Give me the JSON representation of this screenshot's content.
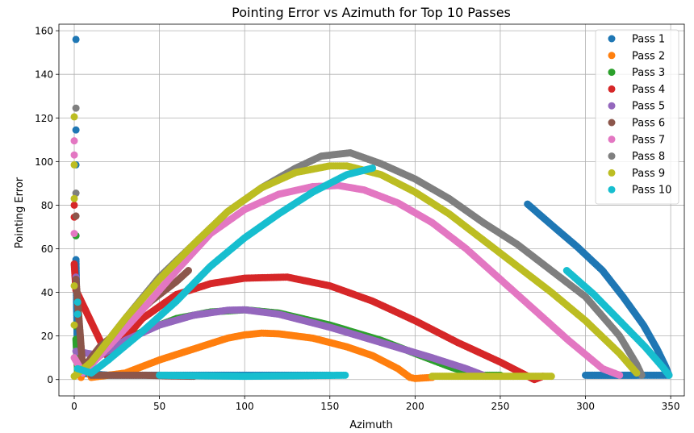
{
  "chart_data": {
    "type": "scatter",
    "title": "Pointing Error vs Azimuth for Top 10 Passes",
    "xlabel": "Azimuth",
    "ylabel": "Pointing Error",
    "xlim": [
      -9,
      358
    ],
    "ylim": [
      -7.5,
      163
    ],
    "xticks": [
      0,
      50,
      100,
      150,
      200,
      250,
      300,
      350
    ],
    "yticks": [
      0,
      20,
      40,
      60,
      80,
      100,
      120,
      140,
      160
    ],
    "grid": true,
    "legend_position": "top-right",
    "series": [
      {
        "name": "Pass 1",
        "color": "#1f77b4",
        "points": [
          [
            1,
            156
          ],
          [
            1,
            114.5
          ],
          [
            1,
            98.5
          ],
          [
            1,
            66
          ],
          [
            1,
            55
          ],
          [
            2,
            3
          ],
          [
            20,
            2
          ],
          [
            60,
            2
          ],
          [
            100,
            2
          ],
          [
            150,
            2
          ],
          [
            266,
            80.5
          ],
          [
            280,
            71
          ],
          [
            295,
            61
          ],
          [
            310,
            50
          ],
          [
            322,
            38
          ],
          [
            334,
            25
          ],
          [
            342,
            14
          ],
          [
            347,
            6
          ],
          [
            349,
            2
          ],
          [
            300,
            2
          ],
          [
            330,
            2
          ]
        ]
      },
      {
        "name": "Pass 2",
        "color": "#ff7f0e",
        "points": [
          [
            4,
            1
          ],
          [
            6,
            8
          ],
          [
            10,
            1
          ],
          [
            30,
            3
          ],
          [
            50,
            9
          ],
          [
            70,
            14
          ],
          [
            90,
            19
          ],
          [
            100,
            20.5
          ],
          [
            110,
            21.3
          ],
          [
            120,
            21
          ],
          [
            140,
            19
          ],
          [
            160,
            15
          ],
          [
            175,
            11
          ],
          [
            190,
            5
          ],
          [
            197,
            1
          ],
          [
            200,
            0.5
          ],
          [
            210,
            1
          ]
        ]
      },
      {
        "name": "Pass 3",
        "color": "#2ca02c",
        "points": [
          [
            1,
            66
          ],
          [
            1,
            24.5
          ],
          [
            1,
            18.5
          ],
          [
            2,
            3
          ],
          [
            20,
            14
          ],
          [
            40,
            22
          ],
          [
            60,
            28
          ],
          [
            80,
            31
          ],
          [
            100,
            32
          ],
          [
            120,
            30.5
          ],
          [
            150,
            25
          ],
          [
            180,
            18
          ],
          [
            200,
            12
          ],
          [
            220,
            6
          ],
          [
            235,
            2
          ],
          [
            250,
            2
          ]
        ]
      },
      {
        "name": "Pass 4",
        "color": "#d62728",
        "points": [
          [
            0,
            80
          ],
          [
            0,
            74.5
          ],
          [
            0,
            53
          ],
          [
            1,
            41
          ],
          [
            20,
            10
          ],
          [
            40,
            28
          ],
          [
            60,
            39
          ],
          [
            80,
            44
          ],
          [
            100,
            46.5
          ],
          [
            125,
            47
          ],
          [
            150,
            43
          ],
          [
            175,
            36
          ],
          [
            200,
            27
          ],
          [
            225,
            17
          ],
          [
            250,
            8
          ],
          [
            265,
            2
          ],
          [
            270,
            0
          ],
          [
            275,
            1.5
          ]
        ]
      },
      {
        "name": "Pass 5",
        "color": "#9467bd",
        "points": [
          [
            1,
            47
          ],
          [
            1,
            13
          ],
          [
            15,
            11
          ],
          [
            30,
            18
          ],
          [
            50,
            25
          ],
          [
            70,
            29.5
          ],
          [
            90,
            31.8
          ],
          [
            100,
            32
          ],
          [
            120,
            30
          ],
          [
            150,
            24
          ],
          [
            180,
            17
          ],
          [
            210,
            10
          ],
          [
            230,
            5
          ],
          [
            240,
            2
          ]
        ]
      },
      {
        "name": "Pass 6",
        "color": "#8c564b",
        "points": [
          [
            1,
            75
          ],
          [
            1,
            46
          ],
          [
            5,
            5
          ],
          [
            15,
            15
          ],
          [
            30,
            25
          ],
          [
            45,
            36
          ],
          [
            60,
            45
          ],
          [
            67,
            50
          ],
          [
            10,
            2
          ],
          [
            40,
            2
          ],
          [
            70,
            1.5
          ]
        ]
      },
      {
        "name": "Pass 7",
        "color": "#e377c2",
        "points": [
          [
            0,
            109.5
          ],
          [
            0,
            103
          ],
          [
            0,
            67
          ],
          [
            0,
            10
          ],
          [
            5,
            3
          ],
          [
            20,
            15
          ],
          [
            40,
            32
          ],
          [
            60,
            50
          ],
          [
            80,
            67
          ],
          [
            100,
            78
          ],
          [
            120,
            85
          ],
          [
            140,
            88.5
          ],
          [
            155,
            89
          ],
          [
            170,
            87
          ],
          [
            190,
            81
          ],
          [
            210,
            72
          ],
          [
            230,
            60
          ],
          [
            250,
            46
          ],
          [
            270,
            32
          ],
          [
            290,
            18
          ],
          [
            310,
            5
          ],
          [
            320,
            2
          ]
        ]
      },
      {
        "name": "Pass 8",
        "color": "#7f7f7f",
        "points": [
          [
            1,
            124.5
          ],
          [
            1,
            85.5
          ],
          [
            10,
            8
          ],
          [
            30,
            28
          ],
          [
            50,
            47
          ],
          [
            70,
            62
          ],
          [
            90,
            77
          ],
          [
            110,
            88
          ],
          [
            130,
            97
          ],
          [
            145,
            102.5
          ],
          [
            162,
            104
          ],
          [
            180,
            99
          ],
          [
            200,
            92
          ],
          [
            220,
            83
          ],
          [
            240,
            72
          ],
          [
            260,
            62
          ],
          [
            280,
            50
          ],
          [
            300,
            38
          ],
          [
            320,
            20
          ],
          [
            330,
            7
          ],
          [
            333,
            2
          ]
        ]
      },
      {
        "name": "Pass 9",
        "color": "#bcbd22",
        "points": [
          [
            0,
            120.5
          ],
          [
            0,
            98.5
          ],
          [
            0,
            83
          ],
          [
            0,
            43
          ],
          [
            0,
            25
          ],
          [
            0,
            1.5
          ],
          [
            10,
            8
          ],
          [
            30,
            28
          ],
          [
            50,
            46
          ],
          [
            70,
            62
          ],
          [
            90,
            77
          ],
          [
            110,
            88
          ],
          [
            130,
            95
          ],
          [
            150,
            98
          ],
          [
            160,
            98
          ],
          [
            180,
            94
          ],
          [
            200,
            86
          ],
          [
            220,
            76
          ],
          [
            240,
            64
          ],
          [
            260,
            52
          ],
          [
            280,
            40
          ],
          [
            300,
            27
          ],
          [
            320,
            12
          ],
          [
            330,
            3
          ],
          [
            210,
            1.5
          ],
          [
            280,
            1.5
          ]
        ]
      },
      {
        "name": "Pass 10",
        "color": "#17becf",
        "points": [
          [
            2,
            35.5
          ],
          [
            2,
            30
          ],
          [
            2,
            5
          ],
          [
            10,
            3
          ],
          [
            20,
            9
          ],
          [
            40,
            22
          ],
          [
            60,
            36
          ],
          [
            80,
            52
          ],
          [
            100,
            65
          ],
          [
            120,
            76
          ],
          [
            140,
            86
          ],
          [
            160,
            94
          ],
          [
            175,
            97
          ],
          [
            289,
            50
          ],
          [
            305,
            39
          ],
          [
            320,
            27
          ],
          [
            335,
            15
          ],
          [
            345,
            6
          ],
          [
            349,
            2
          ],
          [
            50,
            2
          ],
          [
            100,
            1.5
          ],
          [
            159,
            2
          ]
        ]
      }
    ]
  }
}
